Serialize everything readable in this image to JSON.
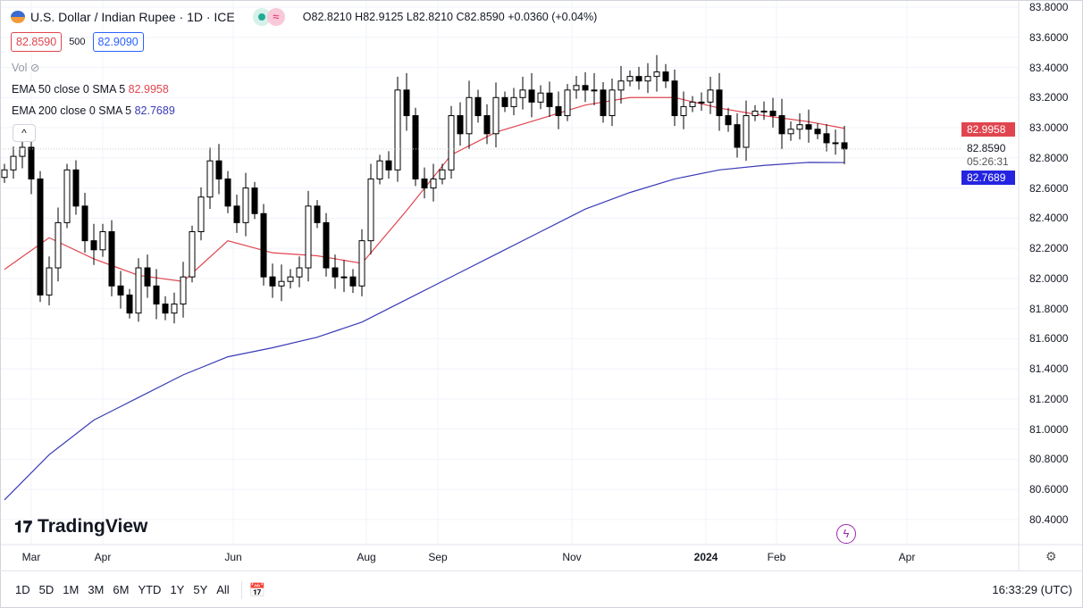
{
  "header": {
    "title": "U.S. Dollar / Indian Rupee · 1D · ICE",
    "open": "O82.8210",
    "high": "H82.9125",
    "low": "L82.8210",
    "close": "C82.8590",
    "change": "+0.0360 (+0.04%)",
    "bid": "82.8590",
    "spread": "500",
    "ask": "82.9090"
  },
  "indicators": {
    "vol": "Vol",
    "ema50": {
      "label": "EMA 50 close 0 SMA 5",
      "value": "82.9958",
      "color": "#e0454f"
    },
    "ema200": {
      "label": "EMA 200 close 0 SMA 5",
      "value": "82.7689",
      "color": "#3a3ab8"
    }
  },
  "price_tags": {
    "ema50": "82.9958",
    "last": "82.8590",
    "countdown": "05:26:31",
    "ema200": "82.7689"
  },
  "logo": "TradingView",
  "bottom": {
    "ranges": [
      "1D",
      "5D",
      "1M",
      "3M",
      "6M",
      "YTD",
      "1Y",
      "5Y",
      "All"
    ],
    "clock": "16:33:29 (UTC)"
  },
  "chart_data": {
    "type": "candlestick",
    "ylim": [
      80.4,
      83.8
    ],
    "yticks": [
      "83.8000",
      "83.6000",
      "83.4000",
      "83.2000",
      "83.0000",
      "82.8000",
      "82.6000",
      "82.4000",
      "82.2000",
      "82.0000",
      "81.8000",
      "81.6000",
      "81.4000",
      "81.2000",
      "81.0000",
      "80.8000",
      "80.6000",
      "80.4000"
    ],
    "xticks": [
      "Mar",
      "Apr",
      "Jun",
      "Aug",
      "Sep",
      "Nov",
      "2024",
      "Feb",
      "Apr"
    ],
    "closes": [
      82.72,
      82.81,
      82.87,
      82.66,
      81.89,
      82.07,
      82.37,
      82.72,
      82.48,
      82.25,
      82.19,
      82.31,
      81.95,
      81.89,
      81.77,
      82.07,
      81.95,
      81.83,
      81.77,
      81.83,
      82.01,
      82.31,
      82.54,
      82.78,
      82.66,
      82.48,
      82.37,
      82.6,
      82.43,
      82.01,
      81.95,
      81.98,
      82.01,
      82.07,
      82.48,
      82.37,
      82.07,
      82.01,
      82.01,
      81.95,
      82.25,
      82.66,
      82.78,
      82.72,
      83.25,
      83.08,
      82.66,
      82.6,
      82.66,
      82.72,
      83.08,
      82.96,
      83.2,
      83.08,
      82.96,
      83.2,
      83.14,
      83.2,
      83.25,
      83.17,
      83.23,
      83.14,
      83.08,
      83.25,
      83.28,
      83.25,
      83.25,
      83.08,
      83.25,
      83.31,
      83.34,
      83.31,
      83.34,
      83.37,
      83.31,
      83.08,
      83.14,
      83.17,
      83.17,
      83.25,
      83.08,
      83.02,
      82.87,
      83.08,
      83.11,
      83.11,
      83.08,
      82.96,
      82.99,
      83.02,
      82.99,
      82.96,
      82.9,
      82.9,
      82.859
    ],
    "ema50": [
      82.06,
      82.27,
      82.13,
      82.02,
      81.98,
      82.25,
      82.17,
      82.15,
      82.1,
      82.45,
      82.82,
      82.97,
      83.06,
      83.15,
      83.2,
      83.2,
      83.13,
      83.08,
      83.04,
      82.9958
    ],
    "ema200": [
      80.53,
      80.83,
      81.06,
      81.21,
      81.36,
      81.48,
      81.54,
      81.61,
      81.71,
      81.86,
      82.01,
      82.16,
      82.31,
      82.46,
      82.57,
      82.66,
      82.72,
      82.75,
      82.77,
      82.7689
    ]
  }
}
